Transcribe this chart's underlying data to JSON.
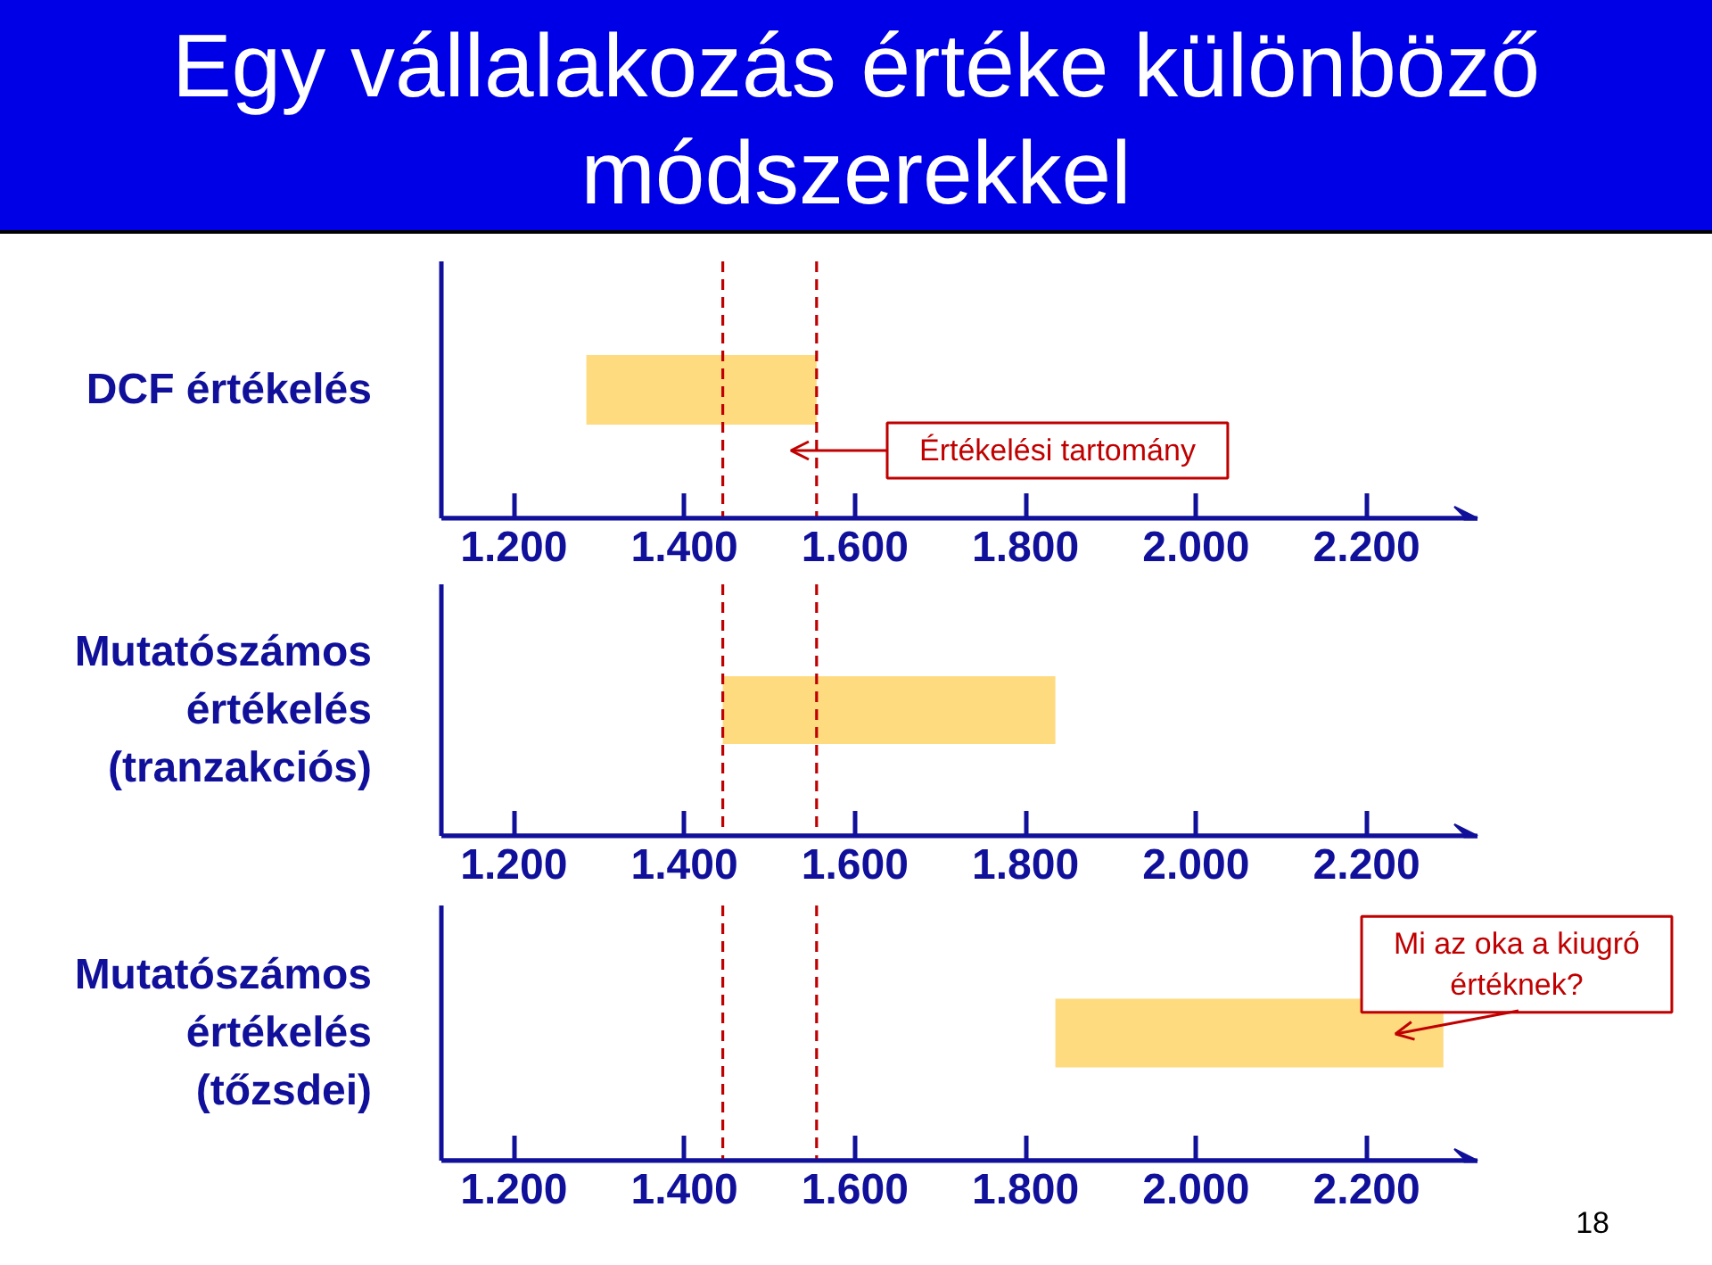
{
  "chart_data": [
    {
      "type": "bar",
      "title": "Egy vállalakozás értéke különböző módszerekkel",
      "orientation": "horizontal",
      "categories": [
        "DCF értékelés"
      ],
      "base": [
        1285
      ],
      "values": [
        270
      ],
      "color": "#ffdb80",
      "xlim": [
        1115,
        2330
      ],
      "xticks": [
        {
          "value": 1200,
          "label": "1.200"
        },
        {
          "value": 1400,
          "label": "1.400"
        },
        {
          "value": 1600,
          "label": "1.600"
        },
        {
          "value": 1800,
          "label": "1.800"
        },
        {
          "value": 2000,
          "label": "2.000"
        },
        {
          "value": 2200,
          "label": "2.200"
        }
      ],
      "ref_lines": [
        {
          "axis": "x",
          "value": 1445,
          "color": "#c00000",
          "line_style": "dashed"
        },
        {
          "axis": "x",
          "value": 1555,
          "color": "#c00000",
          "line_style": "dashed"
        }
      ],
      "annotations": [
        "Értékelési tartomány"
      ]
    },
    {
      "type": "bar",
      "orientation": "horizontal",
      "categories": [
        "Mutatószámos értékelés (tranzakciós)"
      ],
      "base": [
        1445
      ],
      "values": [
        390
      ],
      "color": "#ffdb80",
      "xlim": [
        1115,
        2330
      ],
      "xticks": [
        {
          "value": 1200,
          "label": "1.200"
        },
        {
          "value": 1400,
          "label": "1.400"
        },
        {
          "value": 1600,
          "label": "1.600"
        },
        {
          "value": 1800,
          "label": "1.800"
        },
        {
          "value": 2000,
          "label": "2.000"
        },
        {
          "value": 2200,
          "label": "2.200"
        }
      ],
      "ref_lines": [
        {
          "axis": "x",
          "value": 1445,
          "color": "#c00000",
          "line_style": "dashed"
        },
        {
          "axis": "x",
          "value": 1555,
          "color": "#c00000",
          "line_style": "dashed"
        }
      ]
    },
    {
      "type": "bar",
      "orientation": "horizontal",
      "categories": [
        "Mutatószámos értékelés (tőzsdei)"
      ],
      "base": [
        1835
      ],
      "values": [
        455
      ],
      "color": "#ffdb80",
      "xlim": [
        1115,
        2330
      ],
      "xticks": [
        {
          "value": 1200,
          "label": "1.200"
        },
        {
          "value": 1400,
          "label": "1.400"
        },
        {
          "value": 1600,
          "label": "1.600"
        },
        {
          "value": 1800,
          "label": "1.800"
        },
        {
          "value": 2000,
          "label": "2.000"
        },
        {
          "value": 2200,
          "label": "2.200"
        }
      ],
      "ref_lines": [
        {
          "axis": "x",
          "value": 1445,
          "color": "#c00000",
          "line_style": "dashed"
        },
        {
          "axis": "x",
          "value": 1555,
          "color": "#c00000",
          "line_style": "dashed"
        }
      ],
      "annotations": [
        "Mi az oka a kiugró értéknek?",
        "18"
      ]
    }
  ]
}
